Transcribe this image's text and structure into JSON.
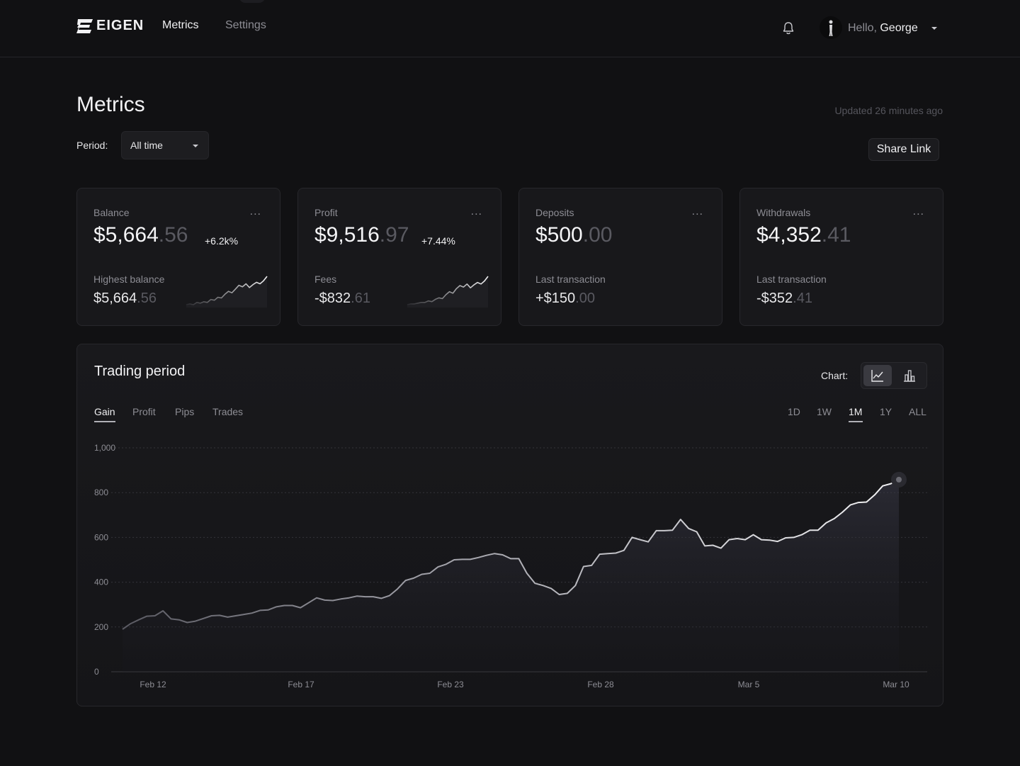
{
  "brand": {
    "name": "EIGEN"
  },
  "nav": {
    "metrics": "Metrics",
    "settings": "Settings"
  },
  "user": {
    "hello": "Hello,",
    "name": "George"
  },
  "page": {
    "title": "Metrics",
    "updated": "Updated 26 minutes ago",
    "period_label": "Period:",
    "period_value": "All time",
    "share": "Share Link"
  },
  "cards": [
    {
      "label": "Balance",
      "value_main": "$5,664",
      "value_cents": ".56",
      "change": "+6.2k%",
      "sublabel": "Highest balance",
      "sub_main": "$5,664",
      "sub_cents": ".56",
      "sparkline": true
    },
    {
      "label": "Profit",
      "value_main": "$9,516",
      "value_cents": ".97",
      "change": "+7.44%",
      "sublabel": "Fees",
      "sub_main": "-$832",
      "sub_cents": ".61",
      "sparkline": true
    },
    {
      "label": "Deposits",
      "value_main": "$500",
      "value_cents": ".00",
      "change": "",
      "sublabel": "Last transaction",
      "sub_main": "+$150",
      "sub_cents": ".00",
      "sparkline": false
    },
    {
      "label": "Withdrawals",
      "value_main": "$4,352",
      "value_cents": ".41",
      "change": "",
      "sublabel": "Last transaction",
      "sub_main": "-$352",
      "sub_cents": ".41",
      "sparkline": false
    }
  ],
  "card_menu": "...",
  "panel": {
    "title": "Trading period",
    "chart_label": "Chart:",
    "tabs": [
      "Gain",
      "Profit",
      "Pips",
      "Trades"
    ],
    "active_tab": "Gain",
    "ranges": [
      "1D",
      "1W",
      "1M",
      "1Y",
      "ALL"
    ],
    "active_range": "1M"
  },
  "chart_data": {
    "type": "area",
    "title": "Trading period",
    "series": [
      {
        "name": "Gain",
        "values": [
          190,
          215,
          232,
          248,
          250,
          272,
          236,
          232,
          220,
          226,
          238,
          250,
          252,
          244,
          250,
          256,
          262,
          274,
          276,
          290,
          296,
          296,
          286,
          308,
          330,
          320,
          318,
          325,
          330,
          338,
          335,
          335,
          328,
          340,
          370,
          408,
          418,
          435,
          440,
          468,
          480,
          500,
          502,
          502,
          510,
          520,
          528,
          522,
          505,
          505,
          440,
          395,
          385,
          372,
          345,
          350,
          385,
          470,
          475,
          525,
          528,
          530,
          542,
          600,
          590,
          580,
          630,
          630,
          632,
          680,
          640,
          625,
          562,
          565,
          552,
          590,
          595,
          590,
          612,
          590,
          588,
          582,
          598,
          600,
          612,
          632,
          632,
          665,
          684,
          712,
          745,
          756,
          758,
          790,
          830,
          840,
          858
        ]
      }
    ],
    "x_tick_labels": [
      "Feb 12",
      "Feb 17",
      "Feb 23",
      "Feb 28",
      "Mar 5",
      "Mar 10"
    ],
    "y_ticks": [
      0,
      200,
      400,
      600,
      800,
      1000
    ],
    "y_tick_labels": [
      "0",
      "200",
      "400",
      "600",
      "800",
      "1,000"
    ],
    "ylim": [
      0,
      1000
    ],
    "xlabel": "",
    "ylabel": "",
    "grid": true
  },
  "sparklines": {
    "balance": [
      10,
      11,
      10,
      13,
      12,
      14,
      13,
      17,
      16,
      20,
      19,
      24,
      28,
      26,
      31,
      36,
      34,
      38,
      33,
      37,
      40,
      38,
      42,
      48
    ],
    "profit": [
      10,
      11,
      11,
      12,
      13,
      13,
      15,
      14,
      17,
      19,
      18,
      23,
      27,
      25,
      31,
      35,
      33,
      37,
      32,
      36,
      39,
      37,
      41,
      47
    ]
  },
  "colors": {
    "bg": "#111113",
    "card": "#18181b",
    "accent": "#e8e8ea",
    "muted": "#8d8d94"
  }
}
